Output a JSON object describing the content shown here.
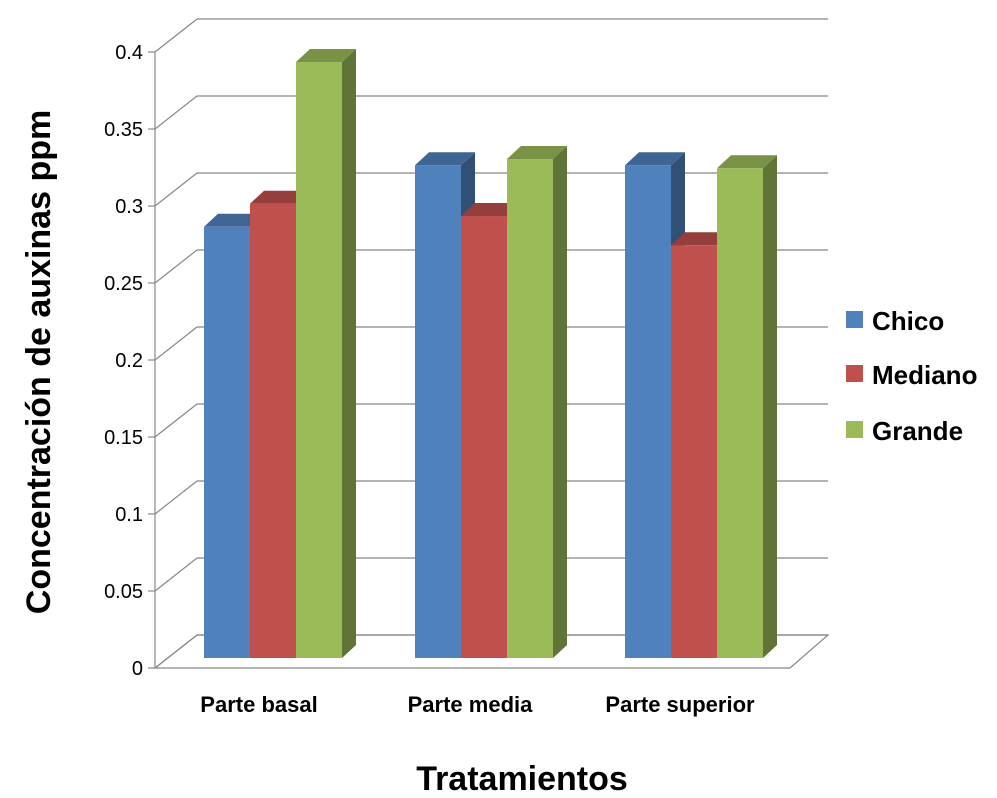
{
  "chart_data": {
    "type": "bar",
    "title": "",
    "xlabel": "Tratamientos",
    "ylabel": "Concentración de auxinas ppm",
    "categories": [
      "Parte basal",
      "Parte media",
      "Parte superior"
    ],
    "series": [
      {
        "name": "Chico",
        "values": [
          0.28,
          0.32,
          0.32
        ],
        "color": "#4f81bd"
      },
      {
        "name": "Mediano",
        "values": [
          0.295,
          0.287,
          0.268
        ],
        "color": "#c0504d"
      },
      {
        "name": "Grande",
        "values": [
          0.387,
          0.324,
          0.318
        ],
        "color": "#9bbb59"
      }
    ],
    "ylim": [
      0,
      0.4
    ],
    "yticks": [
      0,
      0.05,
      0.1,
      0.15,
      0.2,
      0.25,
      0.3,
      0.35,
      0.4
    ],
    "ytick_labels": [
      "0",
      "0.05",
      "0.1",
      "0.15",
      "0.2",
      "0.25",
      "0.3",
      "0.35",
      "0.4"
    ],
    "grid": true,
    "legend_position": "right",
    "style": "3d-clustered-column"
  }
}
